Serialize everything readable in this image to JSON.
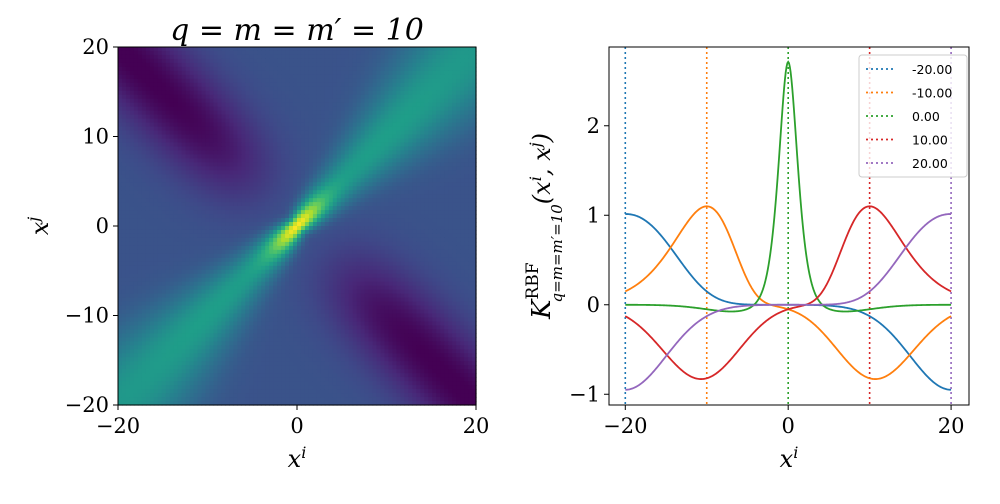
{
  "chart_data": [
    {
      "type": "heatmap",
      "title": "q = m = m′ = 10",
      "xlabel": "x",
      "xlabel_sup": "i",
      "ylabel": "x",
      "ylabel_sup": "j",
      "xlim": [
        -20,
        20
      ],
      "ylim": [
        -20,
        20
      ],
      "xticks": [
        "−20",
        "0",
        "20"
      ],
      "xtick_values": [
        -20,
        0,
        20
      ],
      "yticks": [
        "−20",
        "−10",
        "0",
        "10",
        "20"
      ],
      "ytick_values": [
        -20,
        -10,
        0,
        10,
        20
      ],
      "colormap": "viridis",
      "value_range": [
        -0.93,
        2.72
      ],
      "model": {
        "peak_center": 2.7,
        "peak_far": 1.0,
        "diag_width_base": 1.0,
        "diag_width_slope": 0.27,
        "anti_amplitude": 0.95,
        "anti_width": 5.0
      }
    },
    {
      "type": "line",
      "xlabel": "x",
      "xlabel_sup": "i",
      "ylabel": "K",
      "ylabel_sup": "RBF",
      "ylabel_sub": "q=m=m′=10",
      "ylabel_args": "(x",
      "ylabel_args_sup1": "i",
      "ylabel_args_mid": ", x",
      "ylabel_args_sup2": "j",
      "ylabel_args_end": ")",
      "xlim": [
        -22,
        22.2
      ],
      "ylim": [
        -1.12,
        2.88
      ],
      "xticks": [
        "−20",
        "0",
        "20"
      ],
      "xtick_values": [
        -20,
        0,
        20
      ],
      "yticks": [
        "−1",
        "0",
        "1",
        "2"
      ],
      "ytick_values": [
        -1,
        0,
        1,
        2
      ],
      "legend_position": "top-right",
      "series": [
        {
          "name": "-20.00",
          "center": -20,
          "color": "#1f77b4"
        },
        {
          "name": "-10.00",
          "center": -10,
          "color": "#ff7f0e"
        },
        {
          "name": "0.00",
          "center": 0,
          "color": "#2ca02c"
        },
        {
          "name": "10.00",
          "center": 10,
          "color": "#d62728"
        },
        {
          "name": "20.00",
          "center": 20,
          "color": "#9467bd"
        }
      ]
    }
  ]
}
